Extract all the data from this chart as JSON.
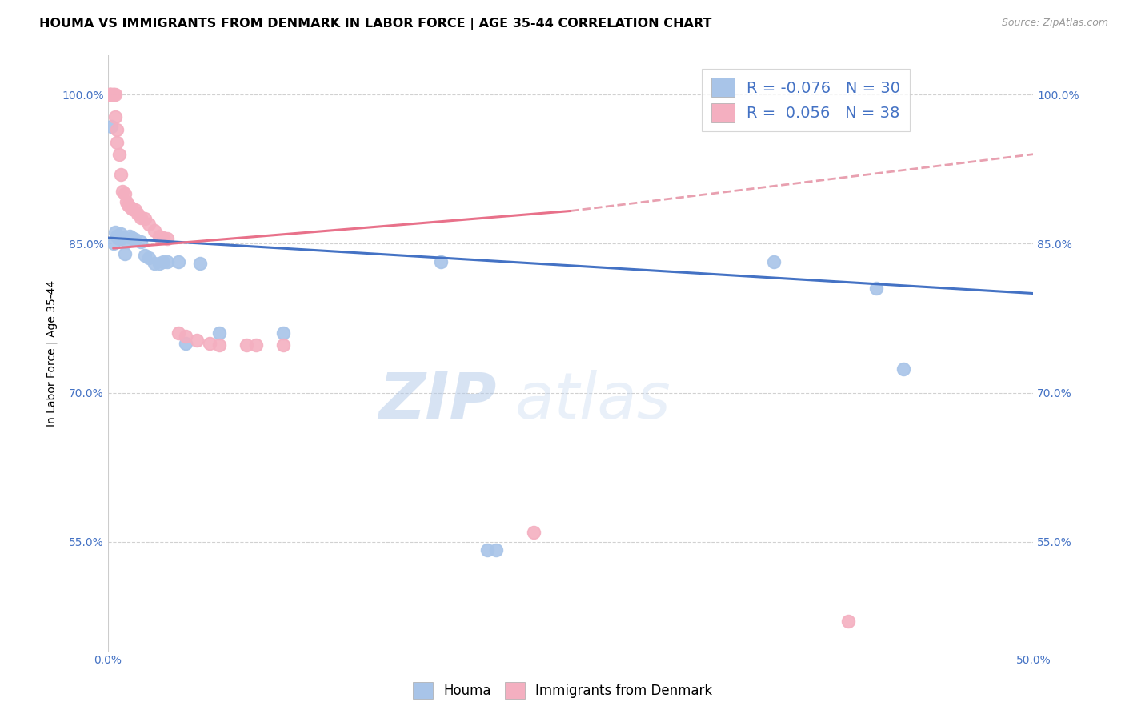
{
  "title": "HOUMA VS IMMIGRANTS FROM DENMARK IN LABOR FORCE | AGE 35-44 CORRELATION CHART",
  "source": "Source: ZipAtlas.com",
  "ylabel": "In Labor Force | Age 35-44",
  "xlim": [
    0.0,
    0.5
  ],
  "ylim": [
    0.44,
    1.04
  ],
  "xticks": [
    0.0,
    0.1,
    0.2,
    0.3,
    0.4,
    0.5
  ],
  "xticklabels": [
    "0.0%",
    "",
    "",
    "",
    "",
    "50.0%"
  ],
  "yticks": [
    0.55,
    0.7,
    0.85,
    1.0
  ],
  "yticklabels": [
    "55.0%",
    "70.0%",
    "85.0%",
    "100.0%"
  ],
  "houma_R": "-0.076",
  "houma_N": "30",
  "denmark_R": "0.056",
  "denmark_N": "38",
  "houma_color": "#a8c4e8",
  "denmark_color": "#f4afc0",
  "houma_line_color": "#4472c4",
  "denmark_line_color": "#e8718a",
  "denmark_line_dash_color": "#e8a0b0",
  "watermark_zip": "ZIP",
  "watermark_atlas": "atlas",
  "legend_houma": "Houma",
  "legend_denmark": "Immigrants from Denmark",
  "houma_x": [
    0.002,
    0.003,
    0.004,
    0.005,
    0.006,
    0.007,
    0.008,
    0.009,
    0.01,
    0.012,
    0.013,
    0.015,
    0.018,
    0.02,
    0.022,
    0.025,
    0.028,
    0.03,
    0.032,
    0.038,
    0.042,
    0.05,
    0.06,
    0.095,
    0.18,
    0.205,
    0.21,
    0.36,
    0.415,
    0.43
  ],
  "houma_y": [
    0.968,
    0.85,
    0.862,
    0.858,
    0.855,
    0.86,
    0.856,
    0.84,
    0.852,
    0.858,
    0.856,
    0.854,
    0.852,
    0.838,
    0.836,
    0.83,
    0.83,
    0.832,
    0.832,
    0.832,
    0.75,
    0.83,
    0.76,
    0.76,
    0.832,
    0.542,
    0.542,
    0.832,
    0.805,
    0.724
  ],
  "denmark_x": [
    0.001,
    0.001,
    0.001,
    0.002,
    0.002,
    0.003,
    0.003,
    0.004,
    0.004,
    0.005,
    0.005,
    0.006,
    0.007,
    0.008,
    0.009,
    0.01,
    0.011,
    0.012,
    0.013,
    0.015,
    0.016,
    0.018,
    0.02,
    0.022,
    0.025,
    0.028,
    0.03,
    0.032,
    0.038,
    0.042,
    0.048,
    0.055,
    0.06,
    0.075,
    0.08,
    0.095,
    0.23,
    0.4
  ],
  "denmark_y": [
    1.0,
    1.0,
    1.0,
    1.0,
    1.0,
    1.0,
    1.0,
    1.0,
    0.978,
    0.965,
    0.952,
    0.94,
    0.92,
    0.903,
    0.9,
    0.892,
    0.889,
    0.887,
    0.885,
    0.884,
    0.88,
    0.876,
    0.875,
    0.87,
    0.863,
    0.858,
    0.856,
    0.855,
    0.76,
    0.757,
    0.753,
    0.75,
    0.748,
    0.748,
    0.748,
    0.748,
    0.56,
    0.47
  ],
  "title_fontsize": 11.5,
  "axis_label_fontsize": 10,
  "tick_fontsize": 10,
  "legend_fontsize": 14
}
